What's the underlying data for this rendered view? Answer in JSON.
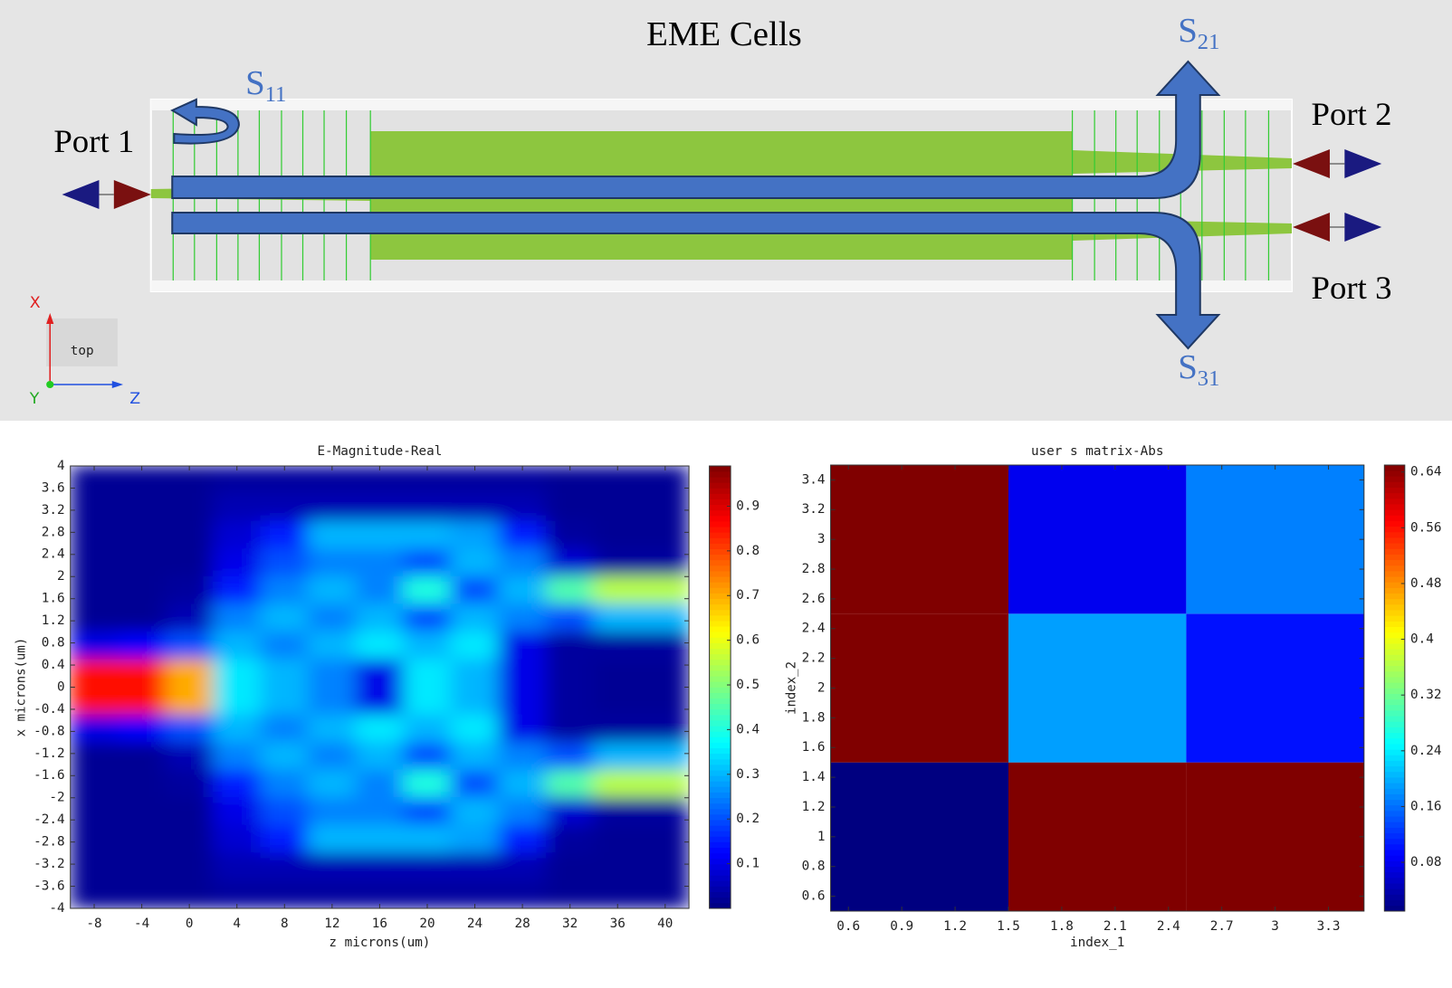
{
  "diagram": {
    "title": "EME Cells",
    "ports": [
      "Port 1",
      "Port 2",
      "Port 3"
    ],
    "s_labels": [
      {
        "main": "S",
        "sub": "11"
      },
      {
        "main": "S",
        "sub": "21"
      },
      {
        "main": "S",
        "sub": "31"
      }
    ],
    "axes": {
      "x": "X",
      "y": "Y",
      "z": "Z",
      "view": "top"
    }
  },
  "chart_data": [
    {
      "type": "heatmap",
      "title": "E-Magnitude-Real",
      "x_label": "z microns(um)",
      "y_label": "x microns(um)",
      "colormap": "jet",
      "smooth": true,
      "x": [
        -8,
        -4,
        0,
        4,
        8,
        12,
        16,
        20,
        24,
        28,
        32,
        36,
        40
      ],
      "y": [
        3.75,
        3.25,
        2.75,
        2.25,
        1.75,
        1.25,
        0.75,
        0.25,
        -0.25,
        -0.75,
        -1.25,
        -1.75,
        -2.25,
        -2.75,
        -3.25,
        -3.75
      ],
      "values": [
        [
          0.02,
          0.02,
          0.02,
          0.03,
          0.03,
          0.03,
          0.03,
          0.03,
          0.03,
          0.03,
          0.02,
          0.02,
          0.02
        ],
        [
          0.02,
          0.02,
          0.02,
          0.05,
          0.05,
          0.05,
          0.05,
          0.05,
          0.05,
          0.05,
          0.02,
          0.02,
          0.02
        ],
        [
          0.02,
          0.02,
          0.02,
          0.08,
          0.15,
          0.3,
          0.3,
          0.3,
          0.28,
          0.15,
          0.03,
          0.02,
          0.02
        ],
        [
          0.02,
          0.02,
          0.02,
          0.1,
          0.2,
          0.25,
          0.25,
          0.2,
          0.3,
          0.25,
          0.08,
          0.03,
          0.03
        ],
        [
          0.02,
          0.02,
          0.03,
          0.15,
          0.25,
          0.3,
          0.25,
          0.4,
          0.2,
          0.3,
          0.45,
          0.55,
          0.55
        ],
        [
          0.02,
          0.02,
          0.05,
          0.25,
          0.3,
          0.25,
          0.3,
          0.2,
          0.3,
          0.25,
          0.2,
          0.3,
          0.3
        ],
        [
          0.1,
          0.12,
          0.2,
          0.3,
          0.25,
          0.3,
          0.35,
          0.3,
          0.35,
          0.1,
          0.03,
          0.03,
          0.03
        ],
        [
          0.85,
          0.85,
          0.7,
          0.35,
          0.3,
          0.25,
          0.1,
          0.35,
          0.3,
          0.1,
          0.03,
          0.02,
          0.02
        ],
        [
          0.85,
          0.85,
          0.7,
          0.35,
          0.3,
          0.25,
          0.1,
          0.35,
          0.3,
          0.1,
          0.03,
          0.02,
          0.02
        ],
        [
          0.1,
          0.12,
          0.2,
          0.3,
          0.25,
          0.3,
          0.35,
          0.3,
          0.35,
          0.1,
          0.03,
          0.03,
          0.03
        ],
        [
          0.02,
          0.02,
          0.05,
          0.25,
          0.3,
          0.25,
          0.3,
          0.2,
          0.3,
          0.25,
          0.2,
          0.3,
          0.3
        ],
        [
          0.02,
          0.02,
          0.03,
          0.15,
          0.25,
          0.3,
          0.25,
          0.4,
          0.2,
          0.3,
          0.45,
          0.55,
          0.55
        ],
        [
          0.02,
          0.02,
          0.02,
          0.1,
          0.2,
          0.25,
          0.25,
          0.2,
          0.3,
          0.25,
          0.08,
          0.03,
          0.03
        ],
        [
          0.02,
          0.02,
          0.02,
          0.08,
          0.15,
          0.3,
          0.3,
          0.3,
          0.28,
          0.15,
          0.03,
          0.02,
          0.02
        ],
        [
          0.02,
          0.02,
          0.02,
          0.05,
          0.05,
          0.05,
          0.05,
          0.05,
          0.05,
          0.05,
          0.02,
          0.02,
          0.02
        ],
        [
          0.02,
          0.02,
          0.02,
          0.03,
          0.03,
          0.03,
          0.03,
          0.03,
          0.03,
          0.03,
          0.02,
          0.02,
          0.02
        ]
      ],
      "xlim": [
        -10,
        42
      ],
      "ylim": [
        -4,
        4
      ],
      "xticks": [
        -8,
        -4,
        0,
        4,
        8,
        12,
        16,
        20,
        24,
        28,
        32,
        36,
        40
      ],
      "yticks": [
        -4,
        -3.6,
        -3.2,
        -2.8,
        -2.4,
        -2,
        -1.6,
        -1.2,
        -0.8,
        -0.4,
        0,
        0.4,
        0.8,
        1.2,
        1.6,
        2,
        2.4,
        2.8,
        3.2,
        3.6,
        4
      ],
      "colorbar": {
        "lim": [
          0,
          0.99
        ],
        "ticks": [
          0.1,
          0.2,
          0.3,
          0.4,
          0.5,
          0.6,
          0.7,
          0.8,
          0.9
        ]
      }
    },
    {
      "type": "heatmap",
      "title": "user s matrix-Abs",
      "x_label": "index_1",
      "y_label": "index_2",
      "colormap": "jet",
      "smooth": false,
      "x": [
        1,
        2,
        3
      ],
      "y": [
        1,
        2,
        3
      ],
      "values": [
        [
          0.01,
          0.65,
          0.65
        ],
        [
          0.65,
          0.19,
          0.1
        ],
        [
          0.65,
          0.08,
          0.17
        ]
      ],
      "xlim": [
        0.5,
        3.5
      ],
      "ylim": [
        0.5,
        3.5
      ],
      "xticks": [
        0.6,
        0.9,
        1.2,
        1.5,
        1.8,
        2.1,
        2.4,
        2.7,
        3,
        3.3
      ],
      "yticks": [
        0.6,
        0.8,
        1,
        1.2,
        1.4,
        1.6,
        1.8,
        2,
        2.2,
        2.4,
        2.6,
        2.8,
        3,
        3.2,
        3.4
      ],
      "colorbar": {
        "lim": [
          0.01,
          0.65
        ],
        "ticks": [
          0.08,
          0.16,
          0.24,
          0.32,
          0.4,
          0.48,
          0.56,
          0.64
        ]
      }
    }
  ]
}
